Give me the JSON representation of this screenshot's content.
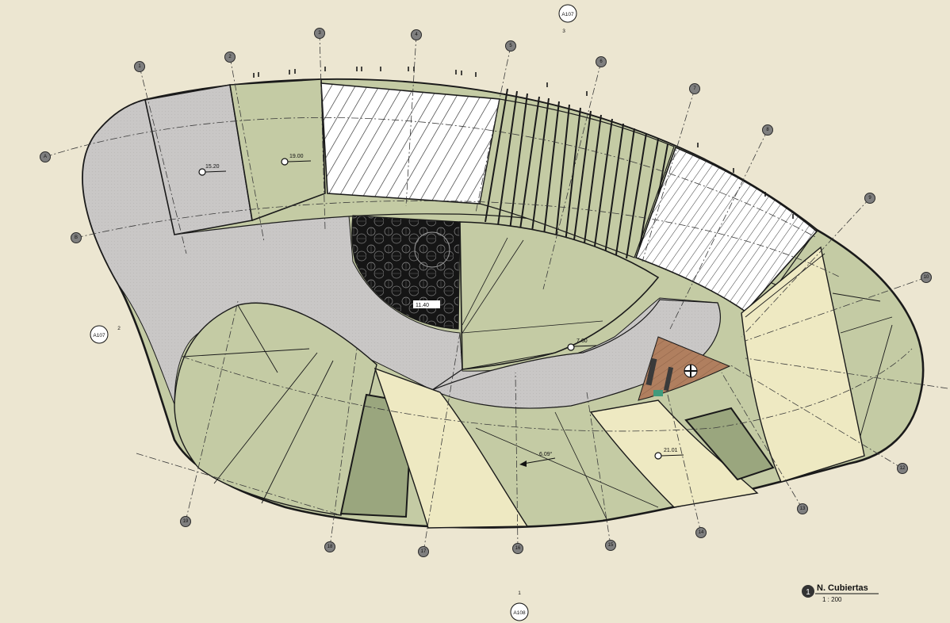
{
  "drawing": {
    "title": "N. Cubiertas",
    "scale": "1 : 200",
    "view_number": "1"
  },
  "grid_labels_radial": [
    "1",
    "2",
    "3",
    "4",
    "5",
    "6",
    "7",
    "8",
    "9",
    "10",
    "12",
    "13",
    "14",
    "15",
    "16",
    "17",
    "18",
    "19"
  ],
  "grid_labels_ring": [
    "A",
    "B"
  ],
  "elevation_marks": [
    "15.20",
    "19.00",
    "11.40",
    "7.60",
    "21.01",
    "6.09°"
  ],
  "section_refs": [
    {
      "sheet": "A107",
      "number": "3"
    },
    {
      "sheet": "A107",
      "number": "2"
    },
    {
      "sheet": "A108",
      "number": "1"
    }
  ],
  "colors": {
    "background": "#ece6d1",
    "roof_green": "#c4cba4",
    "roof_green_dark": "#9aa67e",
    "paving_gray": "#c9c7c6",
    "skylight_cream": "#eee9c2",
    "deck_wood": "#b07f5f",
    "outline": "#1a1a1a"
  }
}
